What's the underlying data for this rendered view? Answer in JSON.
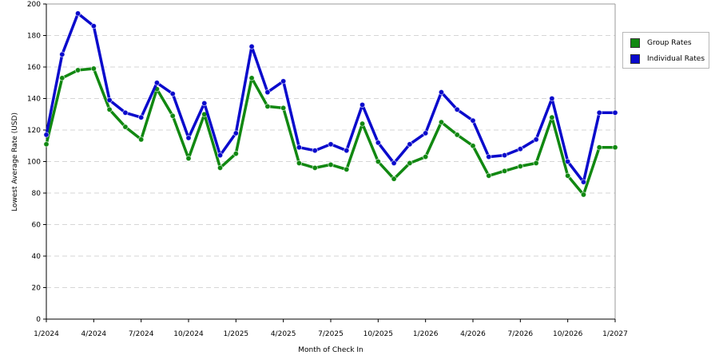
{
  "chart_data": {
    "type": "line",
    "title": "",
    "xlabel": "Month of Check In",
    "ylabel": "Lowest Average Rate (USD)",
    "ylim": [
      0,
      200
    ],
    "yticks": [
      0,
      20,
      40,
      60,
      80,
      100,
      120,
      140,
      160,
      180,
      200
    ],
    "x_tick_labels": [
      {
        "index": 0,
        "label": "1/2024"
      },
      {
        "index": 3,
        "label": "4/2024"
      },
      {
        "index": 6,
        "label": "7/2024"
      },
      {
        "index": 9,
        "label": "10/2024"
      },
      {
        "index": 12,
        "label": "1/2025"
      },
      {
        "index": 15,
        "label": "4/2025"
      },
      {
        "index": 18,
        "label": "7/2025"
      },
      {
        "index": 21,
        "label": "10/2025"
      },
      {
        "index": 24,
        "label": "1/2026"
      },
      {
        "index": 27,
        "label": "4/2026"
      },
      {
        "index": 30,
        "label": "7/2026"
      },
      {
        "index": 33,
        "label": "10/2026"
      },
      {
        "index": 36,
        "label": "1/2027"
      }
    ],
    "categories": [
      "1/2024",
      "2/2024",
      "3/2024",
      "4/2024",
      "5/2024",
      "6/2024",
      "7/2024",
      "8/2024",
      "9/2024",
      "10/2024",
      "11/2024",
      "12/2024",
      "1/2025",
      "2/2025",
      "3/2025",
      "4/2025",
      "5/2025",
      "6/2025",
      "7/2025",
      "8/2025",
      "9/2025",
      "10/2025",
      "11/2025",
      "12/2025",
      "1/2026",
      "2/2026",
      "3/2026",
      "4/2026",
      "5/2026",
      "6/2026",
      "7/2026",
      "8/2026",
      "9/2026",
      "10/2026",
      "11/2026",
      "12/2026",
      "1/2027"
    ],
    "grid": true,
    "legend_position": "right",
    "series": [
      {
        "name": "Group Rates",
        "color": "#118811",
        "values": [
          111,
          153,
          158,
          159,
          133,
          122,
          114,
          146,
          129,
          102,
          130,
          96,
          105,
          153,
          135,
          134,
          99,
          96,
          98,
          95,
          124,
          100,
          89,
          99,
          103,
          125,
          117,
          110,
          91,
          94,
          97,
          99,
          128,
          91,
          79,
          109,
          109
        ]
      },
      {
        "name": "Individual Rates",
        "color": "#0a0acc",
        "values": [
          117,
          168,
          194,
          186,
          139,
          131,
          128,
          150,
          143,
          115,
          137,
          104,
          118,
          173,
          144,
          151,
          109,
          107,
          111,
          107,
          136,
          112,
          99,
          111,
          118,
          144,
          133,
          126,
          103,
          104,
          108,
          114,
          140,
          100,
          87,
          131,
          131
        ]
      }
    ]
  }
}
